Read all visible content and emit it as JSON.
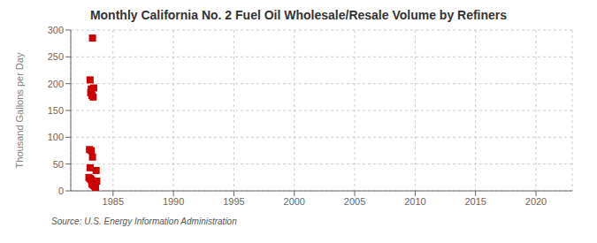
{
  "chart_data": {
    "type": "scatter",
    "title": "Monthly California No. 2 Fuel Oil Wholesale/Resale Volume by Refiners",
    "y_label": "Thousand Gallons per Day",
    "annotations": [
      "Source: U.S. Energy Information Administration"
    ],
    "color": "#cc0000",
    "marker": "square",
    "grid": true,
    "xlim": [
      1981.5,
      2023
    ],
    "ylim": [
      0,
      300
    ],
    "xticks": [
      1985,
      1990,
      1995,
      2000,
      2005,
      2010,
      2015,
      2020
    ],
    "yticks": [
      0,
      50,
      100,
      150,
      200,
      250,
      300
    ],
    "x": [
      1983.3,
      1983.1,
      1983.2,
      1983.4,
      1983.15,
      1983.25,
      1983.35,
      1983.05,
      1983.2,
      1983.3,
      1983.1,
      1983.0,
      1983.08,
      1983.15,
      1983.22,
      1983.3,
      1983.38,
      1983.45,
      1983.25,
      1983.35,
      1983.42,
      1983.5,
      1983.55,
      1983.6,
      1983.65
    ],
    "values": [
      285,
      207,
      190,
      192,
      183,
      178,
      175,
      77,
      75,
      63,
      43,
      25,
      23,
      22,
      20,
      18,
      16,
      14,
      13,
      11,
      10,
      8,
      5,
      38,
      18
    ]
  }
}
